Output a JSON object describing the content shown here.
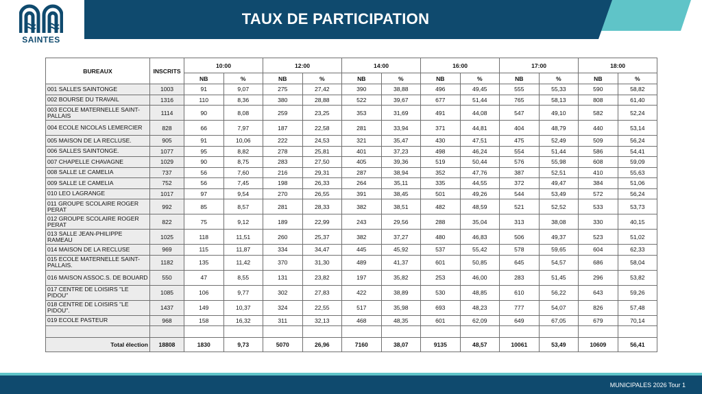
{
  "header": {
    "logo_text": "SAINTES",
    "title": "TAUX DE PARTICIPATION"
  },
  "table": {
    "col_bureaux": "BUREAUX",
    "col_inscrits": "INSCRITS",
    "times": [
      "10:00",
      "12:00",
      "14:00",
      "16:00",
      "17:00",
      "18:00"
    ],
    "sub_nb": "NB",
    "sub_pct": "%",
    "rows": [
      {
        "name": "001 SALLES SAINTONGE",
        "inscrits": "1003",
        "v": [
          "91",
          "9,07",
          "275",
          "27,42",
          "390",
          "38,88",
          "496",
          "49,45",
          "555",
          "55,33",
          "590",
          "58,82"
        ]
      },
      {
        "name": "002 BOURSE DU TRAVAIL",
        "inscrits": "1316",
        "v": [
          "110",
          "8,36",
          "380",
          "28,88",
          "522",
          "39,67",
          "677",
          "51,44",
          "765",
          "58,13",
          "808",
          "61,40"
        ]
      },
      {
        "name": "003 ECOLE MATERNELLE SAINT-PALLAIS",
        "inscrits": "1114",
        "v": [
          "90",
          "8,08",
          "259",
          "23,25",
          "353",
          "31,69",
          "491",
          "44,08",
          "547",
          "49,10",
          "582",
          "52,24"
        ]
      },
      {
        "name": "004 ECOLE NICOLAS LEMERCIER",
        "inscrits": "828",
        "v": [
          "66",
          "7,97",
          "187",
          "22,58",
          "281",
          "33,94",
          "371",
          "44,81",
          "404",
          "48,79",
          "440",
          "53,14"
        ]
      },
      {
        "name": "005 MAISON DE LA RECLUSE.",
        "inscrits": "905",
        "v": [
          "91",
          "10,06",
          "222",
          "24,53",
          "321",
          "35,47",
          "430",
          "47,51",
          "475",
          "52,49",
          "509",
          "56,24"
        ]
      },
      {
        "name": "006 SALLES SAINTONGE.",
        "inscrits": "1077",
        "v": [
          "95",
          "8,82",
          "278",
          "25,81",
          "401",
          "37,23",
          "498",
          "46,24",
          "554",
          "51,44",
          "586",
          "54,41"
        ]
      },
      {
        "name": "007 CHAPELLE CHAVAGNE",
        "inscrits": "1029",
        "v": [
          "90",
          "8,75",
          "283",
          "27,50",
          "405",
          "39,36",
          "519",
          "50,44",
          "576",
          "55,98",
          "608",
          "59,09"
        ]
      },
      {
        "name": "008 SALLE LE CAMELIA",
        "inscrits": "737",
        "v": [
          "56",
          "7,60",
          "216",
          "29,31",
          "287",
          "38,94",
          "352",
          "47,76",
          "387",
          "52,51",
          "410",
          "55,63"
        ]
      },
      {
        "name": "009 SALLE LE CAMELIA",
        "inscrits": "752",
        "v": [
          "56",
          "7,45",
          "198",
          "26,33",
          "264",
          "35,11",
          "335",
          "44,55",
          "372",
          "49,47",
          "384",
          "51,06"
        ]
      },
      {
        "name": "010 LEO LAGRANGE",
        "inscrits": "1017",
        "v": [
          "97",
          "9,54",
          "270",
          "26,55",
          "391",
          "38,45",
          "501",
          "49,26",
          "544",
          "53,49",
          "572",
          "56,24"
        ]
      },
      {
        "name": "011 GROUPE SCOLAIRE ROGER PERAT",
        "inscrits": "992",
        "v": [
          "85",
          "8,57",
          "281",
          "28,33",
          "382",
          "38,51",
          "482",
          "48,59",
          "521",
          "52,52",
          "533",
          "53,73"
        ]
      },
      {
        "name": "012 GROUPE SCOLAIRE ROGER PERAT",
        "inscrits": "822",
        "v": [
          "75",
          "9,12",
          "189",
          "22,99",
          "243",
          "29,56",
          "288",
          "35,04",
          "313",
          "38,08",
          "330",
          "40,15"
        ]
      },
      {
        "name": "013 SALLE JEAN-PHILIPPE RAMEAU",
        "inscrits": "1025",
        "v": [
          "118",
          "11,51",
          "260",
          "25,37",
          "382",
          "37,27",
          "480",
          "46,83",
          "506",
          "49,37",
          "523",
          "51,02"
        ]
      },
      {
        "name": "014 MAISON DE LA RECLUSE",
        "inscrits": "969",
        "v": [
          "115",
          "11,87",
          "334",
          "34,47",
          "445",
          "45,92",
          "537",
          "55,42",
          "578",
          "59,65",
          "604",
          "62,33"
        ]
      },
      {
        "name": "015 ECOLE MATERNELLE SAINT-PALLAIS.",
        "inscrits": "1182",
        "v": [
          "135",
          "11,42",
          "370",
          "31,30",
          "489",
          "41,37",
          "601",
          "50,85",
          "645",
          "54,57",
          "686",
          "58,04"
        ]
      },
      {
        "name": "016 MAISON ASSOC.S. DE BOUARD",
        "inscrits": "550",
        "v": [
          "47",
          "8,55",
          "131",
          "23,82",
          "197",
          "35,82",
          "253",
          "46,00",
          "283",
          "51,45",
          "296",
          "53,82"
        ]
      },
      {
        "name": "017 CENTRE DE LOISIRS \"LE PIDOU\"",
        "inscrits": "1085",
        "v": [
          "106",
          "9,77",
          "302",
          "27,83",
          "422",
          "38,89",
          "530",
          "48,85",
          "610",
          "56,22",
          "643",
          "59,26"
        ]
      },
      {
        "name": "018 CENTRE DE LOISIRS \"LE PIDOU\".",
        "inscrits": "1437",
        "v": [
          "149",
          "10,37",
          "324",
          "22,55",
          "517",
          "35,98",
          "693",
          "48,23",
          "777",
          "54,07",
          "826",
          "57,48"
        ]
      },
      {
        "name": "019 ECOLE PASTEUR",
        "inscrits": "968",
        "v": [
          "158",
          "16,32",
          "311",
          "32,13",
          "468",
          "48,35",
          "601",
          "62,09",
          "649",
          "67,05",
          "679",
          "70,14"
        ]
      }
    ],
    "total": {
      "label": "Total élection",
      "inscrits": "18808",
      "v": [
        "1830",
        "9,73",
        "5070",
        "26,96",
        "7160",
        "38,07",
        "9135",
        "48,57",
        "10061",
        "53,49",
        "10609",
        "56,41"
      ]
    }
  },
  "footer": {
    "text": "MUNICIPALES 2026 Tour 1"
  },
  "colors": {
    "navy": "#0f4a6e",
    "teal": "#5fc4c8",
    "cell_gray": "#ececec"
  },
  "icons": {
    "logo": "saintes-arches-logo"
  }
}
